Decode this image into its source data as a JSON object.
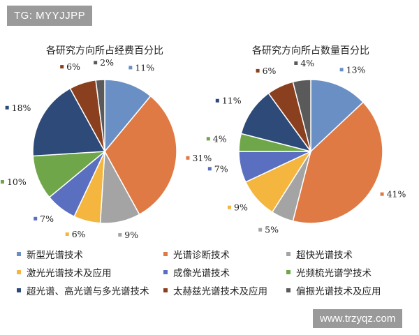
{
  "badges": {
    "tg": "TG: MYYJJPP",
    "site": "www.trzyqz.com"
  },
  "colors": {
    "新型光谱技术": "#6a8fc4",
    "光谱诊断技术": "#df7a45",
    "超快光谱技术": "#a4a4a4",
    "激光光谱技术及应用": "#f4b63e",
    "成像光谱技术": "#5a6fc0",
    "光频梳光谱学技术": "#6fa64a",
    "超光谱、高光谱与多光谱技术": "#2e4a78",
    "太赫兹光谱技术及应用": "#8a3f1e",
    "偏振光谱技术及应用": "#5a5a5a"
  },
  "legend": [
    "新型光谱技术",
    "光谱诊断技术",
    "超快光谱技术",
    "激光光谱技术及应用",
    "成像光谱技术",
    "光频梳光谱学技术",
    "超光谱、高光谱与多光谱技术",
    "太赫兹光谱技术及应用",
    "偏振光谱技术及应用"
  ],
  "chart_data": [
    {
      "type": "pie",
      "title": "各研究方向所占经费百分比",
      "categories": [
        "新型光谱技术",
        "光谱诊断技术",
        "超快光谱技术",
        "激光光谱技术及应用",
        "成像光谱技术",
        "光频梳光谱学技术",
        "超光谱、高光谱与多光谱技术",
        "太赫兹光谱技术及应用",
        "偏振光谱技术及应用"
      ],
      "values": [
        11,
        31,
        9,
        6,
        7,
        10,
        18,
        6,
        2
      ],
      "labels": [
        "11%",
        "31%",
        "9%",
        "6%",
        "7%",
        "10%",
        "18%",
        "6%",
        "2%"
      ]
    },
    {
      "type": "pie",
      "title": "各研究方向所占数量百分比",
      "categories": [
        "新型光谱技术",
        "光谱诊断技术",
        "超快光谱技术",
        "激光光谱技术及应用",
        "成像光谱技术",
        "光频梳光谱学技术",
        "超光谱、高光谱与多光谱技术",
        "太赫兹光谱技术及应用",
        "偏振光谱技术及应用"
      ],
      "values": [
        13,
        41,
        5,
        9,
        7,
        4,
        11,
        6,
        4
      ],
      "labels": [
        "13%",
        "41%",
        "5%",
        "9%",
        "7%",
        "4%",
        "11%",
        "6%",
        "4%"
      ]
    }
  ]
}
